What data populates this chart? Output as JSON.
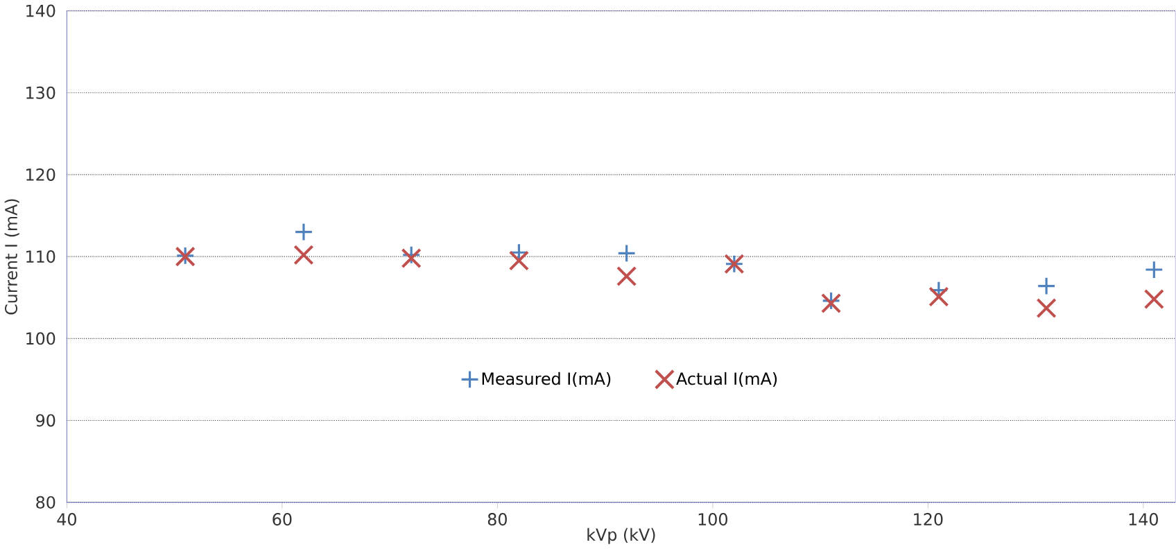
{
  "chart_data": {
    "type": "scatter",
    "xlabel": "kVp (kV)",
    "ylabel": "Current I (mA)",
    "x": [
      51,
      62,
      72,
      82,
      92,
      102,
      111,
      121,
      131,
      141
    ],
    "series": [
      {
        "name": "Measured I(mA)",
        "color": "#4f81bd",
        "marker": "plus",
        "values": [
          110.1,
          113.0,
          110.2,
          110.5,
          110.4,
          109.1,
          104.6,
          105.9,
          106.4,
          108.4
        ]
      },
      {
        "name": "Actual I(mA)",
        "color": "#c0504d",
        "marker": "cross",
        "values": [
          110.0,
          110.2,
          109.8,
          109.5,
          107.6,
          109.1,
          104.3,
          105.1,
          103.7,
          104.8
        ]
      }
    ],
    "xlim": [
      40,
      143
    ],
    "ylim": [
      80,
      140
    ],
    "xticks": [
      40,
      60,
      80,
      100,
      120,
      140
    ],
    "yticks": [
      80,
      90,
      100,
      110,
      120,
      130,
      140
    ],
    "grid": "y",
    "legend": "bottom"
  }
}
